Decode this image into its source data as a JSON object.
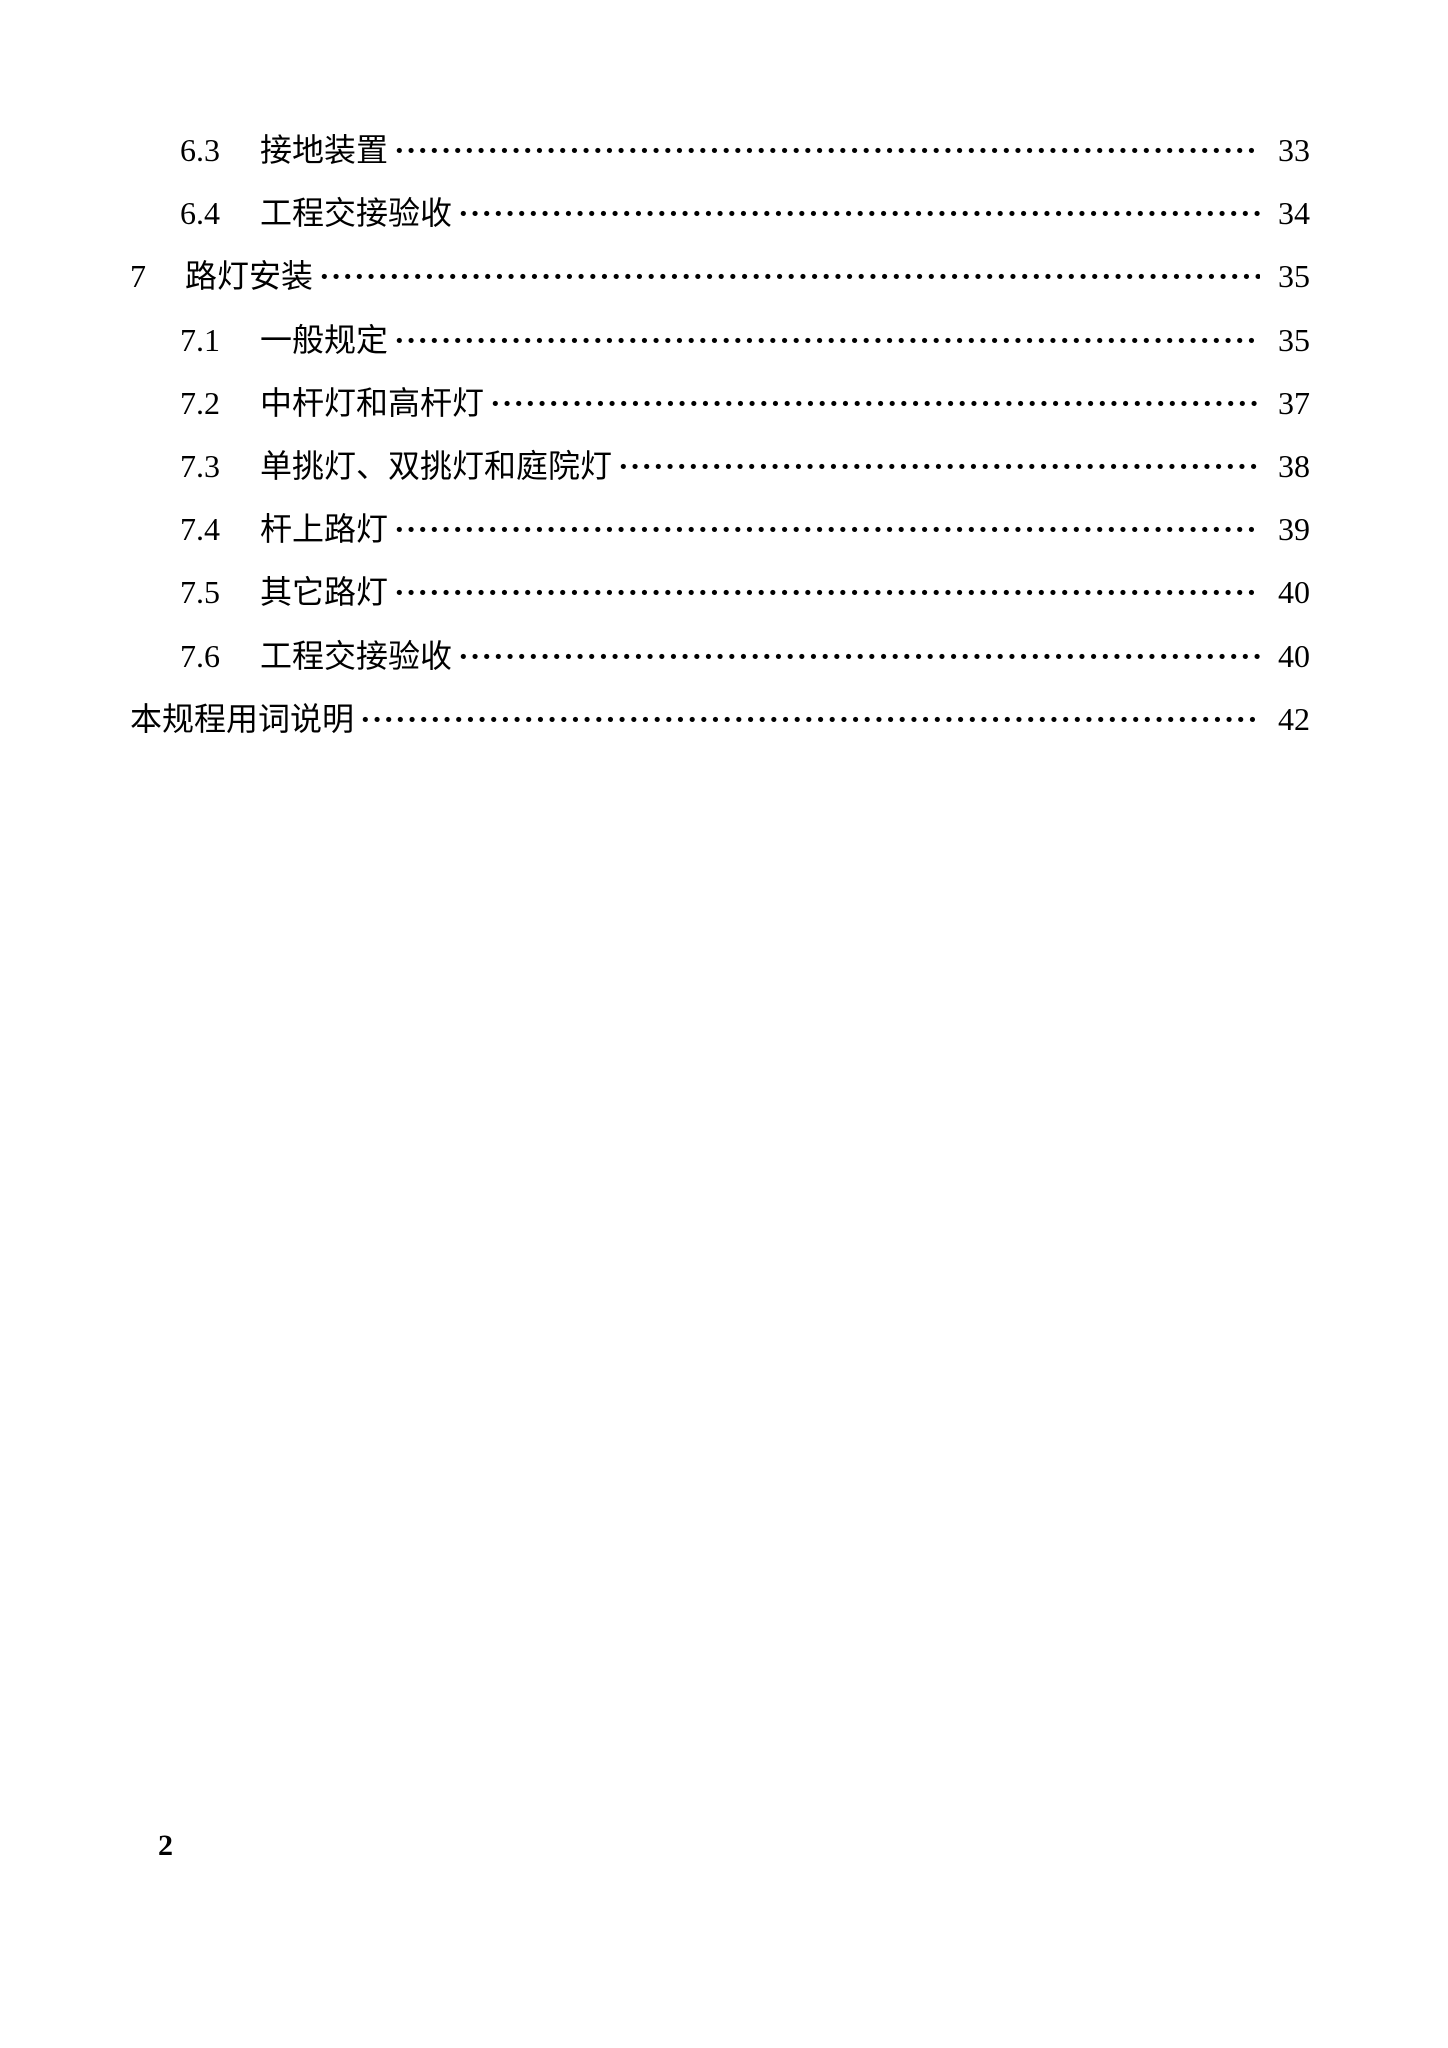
{
  "toc": {
    "entries": [
      {
        "level": 2,
        "number": "6.3",
        "title": "接地装置",
        "page": "33"
      },
      {
        "level": 2,
        "number": "6.4",
        "title": "工程交接验收",
        "page": "34"
      },
      {
        "level": 1,
        "number": "7",
        "title": "路灯安装",
        "page": "35"
      },
      {
        "level": 2,
        "number": "7.1",
        "title": "一般规定",
        "page": "35"
      },
      {
        "level": 2,
        "number": "7.2",
        "title": "中杆灯和高杆灯",
        "page": "37"
      },
      {
        "level": 2,
        "number": "7.3",
        "title": "单挑灯、双挑灯和庭院灯",
        "page": "38"
      },
      {
        "level": 2,
        "number": "7.4",
        "title": "杆上路灯",
        "page": "39"
      },
      {
        "level": 2,
        "number": "7.5",
        "title": "其它路灯",
        "page": "40"
      },
      {
        "level": 2,
        "number": "7.6",
        "title": "工程交接验收",
        "page": "40"
      },
      {
        "level": 0,
        "number": "",
        "title": "本规程用词说明",
        "page": "42"
      }
    ]
  },
  "page_number": "2",
  "leader_char": "·",
  "colors": {
    "text": "#000000",
    "background": "#ffffff"
  },
  "typography": {
    "body_fontsize": 32,
    "page_number_fontsize": 30
  }
}
